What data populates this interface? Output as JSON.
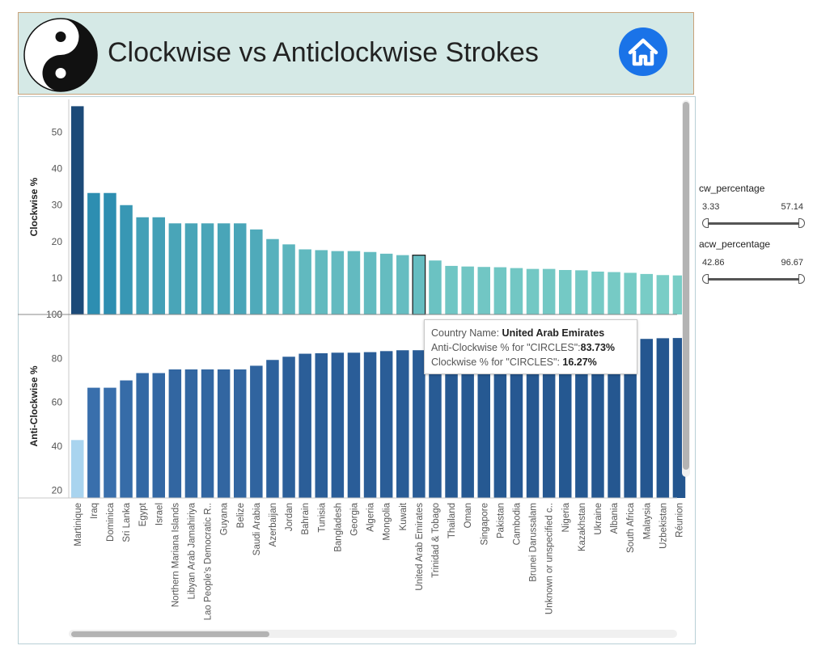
{
  "header": {
    "title": "Clockwise vs Anticlockwise Strokes",
    "colors": {
      "background": "#d5e9e6",
      "border": "#c8a27a",
      "home_button": "#1a73e8"
    },
    "icons": {
      "logo": "yin-yang-icon",
      "home": "home-icon"
    }
  },
  "filters": [
    {
      "name": "cw_percentage",
      "min": "3.33",
      "max": "57.14"
    },
    {
      "name": "acw_percentage",
      "min": "42.86",
      "max": "96.67"
    }
  ],
  "tooltip": {
    "country_label": "Country Name:",
    "country_value": "United Arab Emirates",
    "acw_label": "Anti-Clockwise % for \"CIRCLES\":",
    "acw_value": "83.73%",
    "cw_label": "Clockwise % for \"CIRCLES\":",
    "cw_value": "16.27%"
  },
  "chart_data": [
    {
      "type": "bar",
      "ylabel": "Clockwise %",
      "ylim": [
        0,
        59
      ],
      "yticks": [
        0,
        10,
        20,
        30,
        40,
        50
      ],
      "highlight_index": 21,
      "categories": [
        "Martinique",
        "Iraq",
        "Dominica",
        "Sri Lanka",
        "Egypt",
        "Israel",
        "Northern Mariana Islands",
        "Libyan Arab Jamahiriya",
        "Lao People's Democratic R..",
        "Guyana",
        "Belize",
        "Saudi Arabia",
        "Azerbaijan",
        "Jordan",
        "Bahrain",
        "Tunisia",
        "Bangladesh",
        "Georgia",
        "Algeria",
        "Mongolia",
        "Kuwait",
        "United Arab Emirates",
        "Trinidad & Tobago",
        "Thailand",
        "Oman",
        "Singapore",
        "Pakistan",
        "Cambodia",
        "Brunei Darussalam",
        "Unknown or unspecified c..",
        "Nigeria",
        "Kazakhstan",
        "Ukraine",
        "Albania",
        "South Africa",
        "Malaysia",
        "Uzbekistan",
        "Réunion"
      ],
      "values": [
        57.14,
        33.33,
        33.33,
        30.0,
        26.67,
        26.67,
        25.0,
        25.0,
        25.0,
        25.0,
        25.0,
        23.33,
        20.69,
        19.23,
        17.86,
        17.65,
        17.39,
        17.39,
        17.14,
        16.67,
        16.28,
        16.27,
        14.81,
        13.33,
        13.16,
        13.04,
        12.96,
        12.73,
        12.5,
        12.5,
        12.2,
        12.12,
        11.76,
        11.63,
        11.43,
        11.11,
        10.81,
        10.71
      ]
    },
    {
      "type": "bar",
      "ylabel": "Anti-Clockwise %",
      "ylim": [
        16.5,
        100
      ],
      "yticks": [
        20,
        40,
        60,
        80,
        100
      ],
      "categories": [
        "Martinique",
        "Iraq",
        "Dominica",
        "Sri Lanka",
        "Egypt",
        "Israel",
        "Northern Mariana Islands",
        "Libyan Arab Jamahiriya",
        "Lao People's Democratic R..",
        "Guyana",
        "Belize",
        "Saudi Arabia",
        "Azerbaijan",
        "Jordan",
        "Bahrain",
        "Tunisia",
        "Bangladesh",
        "Georgia",
        "Algeria",
        "Mongolia",
        "Kuwait",
        "United Arab Emirates",
        "Trinidad & Tobago",
        "Thailand",
        "Oman",
        "Singapore",
        "Pakistan",
        "Cambodia",
        "Brunei Darussalam",
        "Unknown or unspecified c..",
        "Nigeria",
        "Kazakhstan",
        "Ukraine",
        "Albania",
        "South Africa",
        "Malaysia",
        "Uzbekistan",
        "Réunion"
      ],
      "values": [
        42.86,
        66.67,
        66.67,
        70.0,
        73.33,
        73.33,
        75.0,
        75.0,
        75.0,
        75.0,
        75.0,
        76.67,
        79.31,
        80.77,
        82.14,
        82.35,
        82.61,
        82.61,
        82.86,
        83.33,
        83.72,
        83.73,
        85.19,
        86.67,
        86.84,
        86.96,
        87.04,
        87.27,
        87.5,
        87.5,
        87.8,
        87.88,
        88.24,
        88.37,
        88.57,
        88.89,
        89.19,
        89.29
      ]
    }
  ]
}
